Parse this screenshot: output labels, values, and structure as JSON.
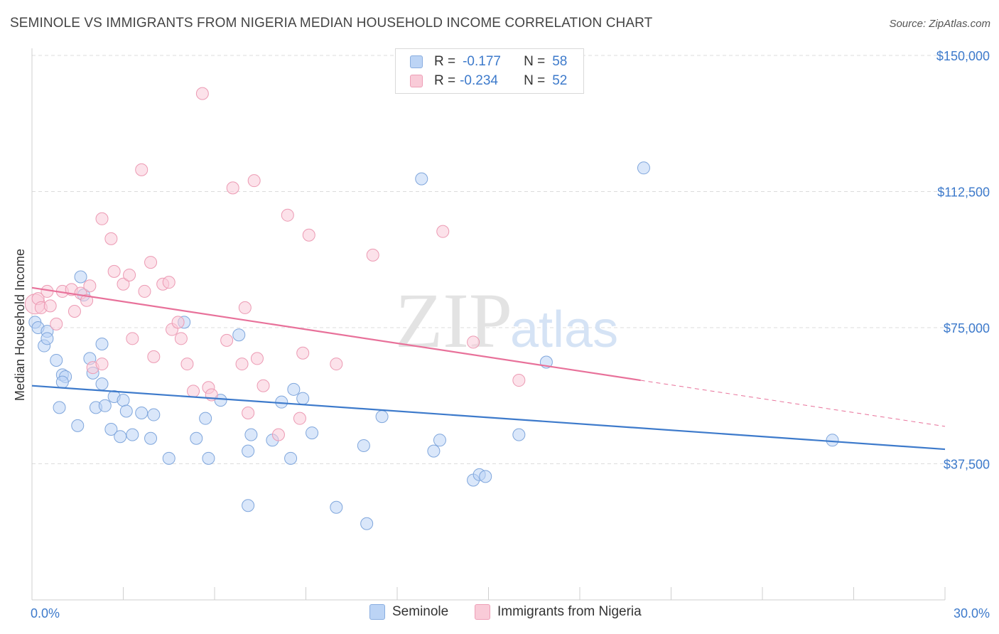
{
  "title": "SEMINOLE VS IMMIGRANTS FROM NIGERIA MEDIAN HOUSEHOLD INCOME CORRELATION CHART",
  "source": "Source: ZipAtlas.com",
  "watermark": {
    "zip": "ZIP",
    "atlas": "atlas"
  },
  "legend": {
    "rows": [
      {
        "r_label": "R =",
        "r_value": "-0.177",
        "n_label": "N =",
        "n_value": "58"
      },
      {
        "r_label": "R =",
        "r_value": "-0.234",
        "n_label": "N =",
        "n_value": "52"
      }
    ]
  },
  "chart_data": {
    "type": "scatter",
    "ylabel": "Median Household Income",
    "xlim": [
      0,
      30
    ],
    "ylim": [
      0,
      150000
    ],
    "x_tick_labels": [
      "0.0%",
      "30.0%"
    ],
    "y_ticks": [
      37500,
      75000,
      112500,
      150000
    ],
    "y_tick_labels": [
      "$37,500",
      "$75,000",
      "$112,500",
      "$150,000"
    ],
    "grid": true,
    "colors": {
      "Seminole": "#3d7acb",
      "Immigrants from Nigeria": "#e8719a"
    },
    "series": [
      {
        "name": "Seminole",
        "trend": {
          "x0": 0.0,
          "y0": 59000,
          "x1": 30.0,
          "y1": 41500
        },
        "points": [
          [
            0.1,
            76500
          ],
          [
            0.2,
            75000
          ],
          [
            0.5,
            74000
          ],
          [
            0.4,
            70000
          ],
          [
            0.5,
            72000
          ],
          [
            0.8,
            66000
          ],
          [
            1.0,
            62000
          ],
          [
            1.1,
            61500
          ],
          [
            1.0,
            60000
          ],
          [
            1.6,
            89000
          ],
          [
            1.7,
            84000
          ],
          [
            1.9,
            66500
          ],
          [
            2.0,
            62500
          ],
          [
            2.3,
            70500
          ],
          [
            2.3,
            59500
          ],
          [
            2.1,
            53000
          ],
          [
            2.4,
            53500
          ],
          [
            2.7,
            56000
          ],
          [
            3.0,
            55000
          ],
          [
            3.1,
            52000
          ],
          [
            3.6,
            51500
          ],
          [
            4.0,
            51000
          ],
          [
            0.9,
            53000
          ],
          [
            1.5,
            48000
          ],
          [
            2.6,
            47000
          ],
          [
            2.9,
            45000
          ],
          [
            3.3,
            45500
          ],
          [
            3.9,
            44500
          ],
          [
            4.5,
            39000
          ],
          [
            5.0,
            76500
          ],
          [
            5.4,
            44500
          ],
          [
            5.7,
            50000
          ],
          [
            5.8,
            39000
          ],
          [
            6.2,
            55000
          ],
          [
            6.8,
            73000
          ],
          [
            7.2,
            45500
          ],
          [
            7.1,
            41000
          ],
          [
            7.1,
            26000
          ],
          [
            7.9,
            44000
          ],
          [
            8.2,
            54500
          ],
          [
            8.5,
            39000
          ],
          [
            8.6,
            58000
          ],
          [
            8.9,
            55500
          ],
          [
            9.2,
            46000
          ],
          [
            10.0,
            25500
          ],
          [
            10.9,
            42500
          ],
          [
            11.5,
            50500
          ],
          [
            11.0,
            21000
          ],
          [
            12.8,
            116000
          ],
          [
            13.4,
            44000
          ],
          [
            13.2,
            41000
          ],
          [
            14.5,
            33000
          ],
          [
            14.7,
            34500
          ],
          [
            14.9,
            34000
          ],
          [
            16.0,
            45500
          ],
          [
            16.9,
            65500
          ],
          [
            20.1,
            119000
          ],
          [
            26.3,
            44000
          ]
        ]
      },
      {
        "name": "Immigrants from Nigeria",
        "trend": {
          "x0": 0.0,
          "y0": 86000,
          "x1": 20.0,
          "y1": 60500,
          "dash_to_x": 30.0,
          "dash_to_y": 47800
        },
        "points": [
          [
            0.1,
            81500
          ],
          [
            0.2,
            83000
          ],
          [
            0.3,
            80500
          ],
          [
            0.5,
            85000
          ],
          [
            0.6,
            81000
          ],
          [
            0.8,
            76000
          ],
          [
            1.0,
            85000
          ],
          [
            1.3,
            85500
          ],
          [
            1.4,
            79500
          ],
          [
            1.6,
            84500
          ],
          [
            1.8,
            82500
          ],
          [
            1.9,
            86500
          ],
          [
            2.0,
            64000
          ],
          [
            2.3,
            65000
          ],
          [
            2.3,
            105000
          ],
          [
            2.6,
            99500
          ],
          [
            2.7,
            90500
          ],
          [
            3.0,
            87000
          ],
          [
            3.2,
            89500
          ],
          [
            3.3,
            72000
          ],
          [
            3.6,
            118500
          ],
          [
            3.7,
            85000
          ],
          [
            3.9,
            93000
          ],
          [
            4.0,
            67000
          ],
          [
            4.3,
            87000
          ],
          [
            4.5,
            87500
          ],
          [
            4.6,
            74500
          ],
          [
            4.8,
            76500
          ],
          [
            4.9,
            72000
          ],
          [
            5.1,
            65000
          ],
          [
            5.3,
            57500
          ],
          [
            5.6,
            139500
          ],
          [
            5.8,
            58500
          ],
          [
            5.9,
            56500
          ],
          [
            6.4,
            71500
          ],
          [
            6.6,
            113500
          ],
          [
            6.9,
            65000
          ],
          [
            7.0,
            80500
          ],
          [
            7.1,
            51500
          ],
          [
            7.3,
            115500
          ],
          [
            7.4,
            66500
          ],
          [
            7.6,
            59000
          ],
          [
            8.1,
            45500
          ],
          [
            8.4,
            106000
          ],
          [
            8.8,
            50000
          ],
          [
            8.9,
            68000
          ],
          [
            9.1,
            100500
          ],
          [
            10.0,
            65000
          ],
          [
            11.2,
            95000
          ],
          [
            13.5,
            101500
          ],
          [
            14.5,
            71000
          ],
          [
            16.0,
            60500
          ]
        ]
      }
    ]
  }
}
